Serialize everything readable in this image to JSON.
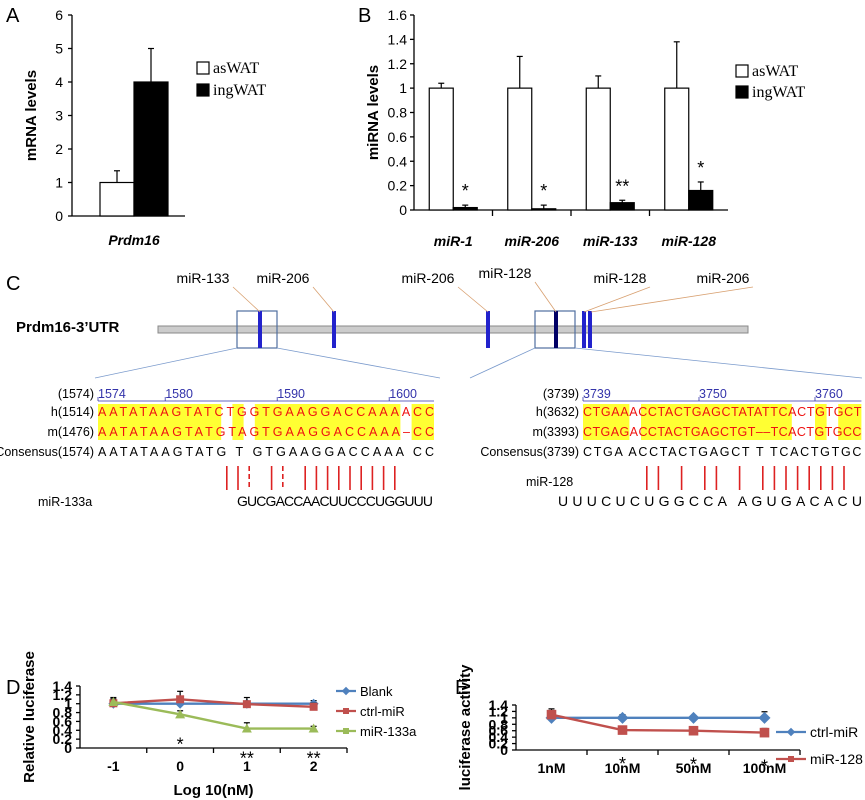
{
  "panel_labels": [
    "A",
    "B",
    "C",
    "D",
    "E"
  ],
  "chart_data": [
    {
      "id": "A",
      "type": "bar",
      "categories": [
        "Prdm16"
      ],
      "series": [
        {
          "name": "asWAT",
          "values": [
            1.0
          ],
          "errors": [
            0.35
          ]
        },
        {
          "name": "ingWAT",
          "values": [
            4.0
          ],
          "errors": [
            1.0
          ]
        }
      ],
      "ylabel": "mRNA levels",
      "ylim": [
        0,
        6
      ],
      "yticks": [
        "0",
        "1",
        "2",
        "3",
        "4",
        "5",
        "6"
      ],
      "colors": {
        "asWAT": "#ffffff",
        "ingWAT": "#000000"
      }
    },
    {
      "id": "B",
      "type": "bar",
      "categories": [
        "miR-1",
        "miR-206",
        "miR-133",
        "miR-128"
      ],
      "series": [
        {
          "name": "asWAT",
          "values": [
            1.0,
            1.0,
            1.0,
            1.0
          ],
          "errors": [
            0.04,
            0.26,
            0.1,
            0.38
          ]
        },
        {
          "name": "ingWAT",
          "values": [
            0.02,
            0.01,
            0.06,
            0.16
          ],
          "errors": [
            0.02,
            0.03,
            0.02,
            0.07
          ]
        }
      ],
      "significance": [
        "*",
        "*",
        "**",
        "*"
      ],
      "ylabel": "miRNA levels",
      "ylim": [
        0,
        1.6
      ],
      "yticks": [
        "0",
        "0.2",
        "0.4",
        "0.6",
        "0.8",
        "1",
        "1.2",
        "1.4",
        "1.6"
      ],
      "colors": {
        "asWAT": "#ffffff",
        "ingWAT": "#000000"
      }
    },
    {
      "id": "D",
      "type": "line",
      "x": [
        -1,
        0,
        1,
        2
      ],
      "xticks": [
        "-1",
        "0",
        "1",
        "2"
      ],
      "series": [
        {
          "name": "Blank",
          "values": [
            1.0,
            1.0,
            1.0,
            1.0
          ],
          "errors": [
            0.08,
            0.08,
            0.05,
            0.07
          ],
          "color": "#4f81bd"
        },
        {
          "name": "ctrl-miR",
          "values": [
            1.01,
            1.1,
            0.99,
            0.93
          ],
          "errors": [
            0.1,
            0.18,
            0.15,
            0.08
          ],
          "color": "#c0504d"
        },
        {
          "name": "miR-133a",
          "values": [
            1.04,
            0.76,
            0.44,
            0.44
          ],
          "errors": [
            0.1,
            0.08,
            0.13,
            0.05
          ],
          "color": "#9bbb59"
        }
      ],
      "significance": [
        "",
        "*",
        "**",
        "**"
      ],
      "xlabel": "Log 10(nM)",
      "ylabel": "Relative luciferase",
      "ylim": [
        0,
        1.4
      ],
      "yticks": [
        "0",
        "0.2",
        "0.4",
        "0.6",
        "0.8",
        "1",
        "1.2",
        "1.4"
      ]
    },
    {
      "id": "E",
      "type": "line",
      "categories": [
        "1nM",
        "10nM",
        "50nM",
        "100nM"
      ],
      "series": [
        {
          "name": "ctrl-miR",
          "values": [
            1.0,
            1.0,
            1.0,
            1.0
          ],
          "errors": [
            0.18,
            0.1,
            0.07,
            0.19
          ],
          "color": "#4f81bd"
        },
        {
          "name": "miR-128",
          "values": [
            1.1,
            0.62,
            0.6,
            0.54
          ],
          "errors": [
            0.18,
            0.09,
            0.07,
            0.13
          ],
          "color": "#c0504d"
        }
      ],
      "significance": [
        "",
        "*",
        "*",
        "*"
      ],
      "ylabel": "luciferase activity",
      "ylim": [
        0,
        1.4
      ],
      "yticks": [
        "0",
        "0.2",
        "0.4",
        "0.6",
        "0.8",
        "1",
        "1.2",
        "1.4"
      ]
    }
  ],
  "panel_c": {
    "gene_label": "Prdm16-3’UTR",
    "site_labels": [
      "miR-133",
      "miR-206",
      "miR-206",
      "miR-128",
      "miR-128",
      "miR-206"
    ],
    "left_alignment": {
      "numbers": [
        "1574",
        "1580",
        "1590",
        "1600"
      ],
      "row_labels": [
        "(1574)",
        "h(1514)",
        "m(1476)",
        "Consensus(1574)"
      ],
      "human": "AATATAAGTATCTGGTGAAGGACCAAAACC",
      "mouse": "AATATAAGTATGTAGTGAAGGACCAAA–CC",
      "consensus": "AATATAAGTATG T  GTGAAGGACCAAA  CC",
      "mirna_name": "miR-133a",
      "mirna_seq": "GUCGACCAACUUCCCUGGUUU"
    },
    "right_alignment": {
      "numbers": [
        "3739",
        "3750",
        "3760"
      ],
      "row_labels": [
        "(3739)",
        "h(3632)",
        "m(3393)",
        "Consensus(3739)"
      ],
      "human": "CTGAAACCTACTGAGCTATATTCACTGTGCT",
      "mouse": "CTGAGACCTACTGAGCTGT––TCACTGTGCC",
      "consensus": "CTGA  ACCTACTGAGCT  T     TCACTGTGC",
      "mirna_name": "miR-128",
      "mirna_seq": "UUUCUCUGGCCA  AGUGACACU"
    }
  }
}
